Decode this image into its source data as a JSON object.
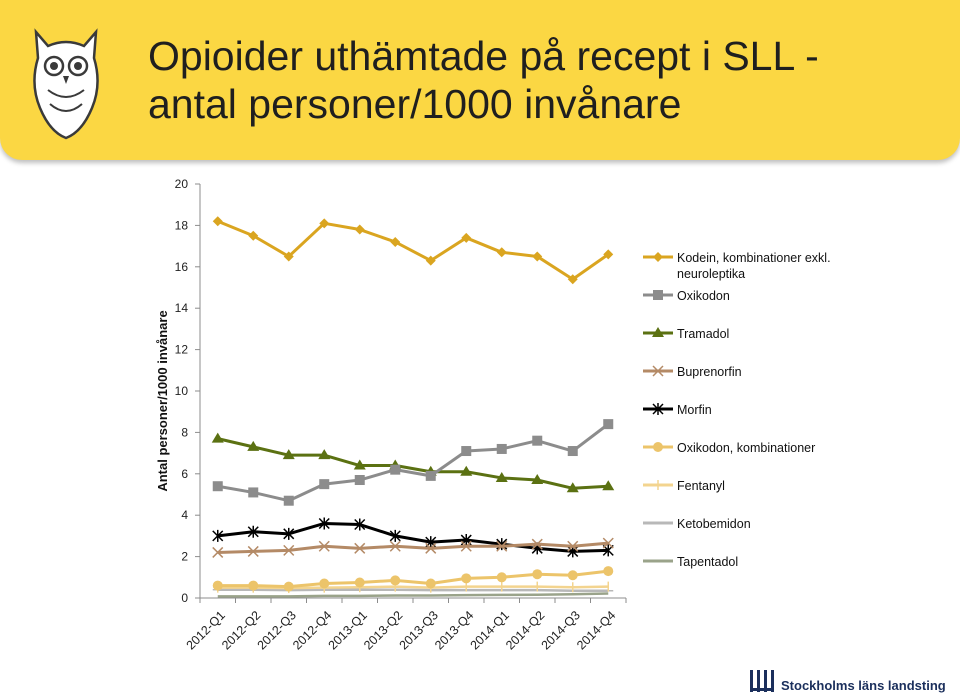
{
  "header": {
    "title_line1": "Opioider uthämtade på recept i SLL -",
    "title_line2": "antal personer/1000 invånare"
  },
  "footer": {
    "logo_text": "Stockholms läns landsting"
  },
  "colors": {
    "banner": "#fbd743",
    "Kodein": "#daa520",
    "Oxikodon": "#8c8c8c",
    "Tramadol": "#5b7112",
    "Buprenorfin": "#b48a66",
    "Morfin": "#000000",
    "OxikodonKomb": "#ecc46a",
    "Fentanyl": "#f3d48f",
    "Ketobemidon": "#b8b8b8",
    "Tapentadol": "#9aa38a"
  },
  "chart_data": {
    "type": "line",
    "title": "Opioider uthämtade på recept i SLL - antal personer/1000 invånare",
    "xlabel": "",
    "ylabel": "Antal personer/1000 invånare",
    "ylim": [
      0,
      20
    ],
    "yticks": [
      0,
      2,
      4,
      6,
      8,
      10,
      12,
      14,
      16,
      18,
      20
    ],
    "grid": false,
    "legend": "right",
    "categories": [
      "2012-Q1",
      "2012-Q2",
      "2012-Q3",
      "2012-Q4",
      "2013-Q1",
      "2013-Q2",
      "2013-Q3",
      "2013-Q4",
      "2014-Q1",
      "2014-Q2",
      "2014-Q3",
      "2014-Q4"
    ],
    "series": [
      {
        "name": "Kodein, kombinationer exkl. neuroleptika",
        "legend_lines": [
          "Kodein, kombinationer exkl.",
          "neuroleptika"
        ],
        "marker": "diamond",
        "color_key": "Kodein",
        "values": [
          18.2,
          17.5,
          16.5,
          18.1,
          17.8,
          17.2,
          16.3,
          17.4,
          16.7,
          16.5,
          15.4,
          16.6
        ]
      },
      {
        "name": "Oxikodon",
        "legend_lines": [
          "Oxikodon"
        ],
        "marker": "square",
        "color_key": "Oxikodon",
        "values": [
          5.4,
          5.1,
          4.7,
          5.5,
          5.7,
          6.2,
          5.9,
          7.1,
          7.2,
          7.6,
          7.1,
          8.4
        ]
      },
      {
        "name": "Tramadol",
        "legend_lines": [
          "Tramadol"
        ],
        "marker": "triangle",
        "color_key": "Tramadol",
        "values": [
          7.7,
          7.3,
          6.9,
          6.9,
          6.4,
          6.4,
          6.1,
          6.1,
          5.8,
          5.7,
          5.3,
          5.4
        ]
      },
      {
        "name": "Buprenorfin",
        "legend_lines": [
          "Buprenorfin"
        ],
        "marker": "x",
        "color_key": "Buprenorfin",
        "values": [
          2.2,
          2.25,
          2.3,
          2.5,
          2.4,
          2.5,
          2.4,
          2.5,
          2.5,
          2.6,
          2.5,
          2.65
        ]
      },
      {
        "name": "Morfin",
        "legend_lines": [
          "Morfin"
        ],
        "marker": "star",
        "color_key": "Morfin",
        "values": [
          3.0,
          3.2,
          3.1,
          3.6,
          3.55,
          3.0,
          2.7,
          2.8,
          2.6,
          2.4,
          2.25,
          2.3
        ]
      },
      {
        "name": "Oxikodon, kombinationer",
        "legend_lines": [
          "Oxikodon, kombinationer"
        ],
        "marker": "circle",
        "color_key": "OxikodonKomb",
        "values": [
          0.6,
          0.6,
          0.55,
          0.7,
          0.75,
          0.85,
          0.7,
          0.95,
          1.0,
          1.15,
          1.1,
          1.3
        ]
      },
      {
        "name": "Fentanyl",
        "legend_lines": [
          "Fentanyl"
        ],
        "marker": "plus",
        "color_key": "Fentanyl",
        "values": [
          0.5,
          0.5,
          0.48,
          0.5,
          0.52,
          0.55,
          0.5,
          0.55,
          0.55,
          0.55,
          0.52,
          0.55
        ]
      },
      {
        "name": "Ketobemidon",
        "legend_lines": [
          "Ketobemidon"
        ],
        "marker": "dash",
        "color_key": "Ketobemidon",
        "values": [
          0.4,
          0.4,
          0.38,
          0.4,
          0.4,
          0.4,
          0.38,
          0.38,
          0.38,
          0.38,
          0.35,
          0.35
        ]
      },
      {
        "name": "Tapentadol",
        "legend_lines": [
          "Tapentadol"
        ],
        "marker": "none",
        "color_key": "Tapentadol",
        "values": [
          0.08,
          0.08,
          0.08,
          0.1,
          0.1,
          0.12,
          0.12,
          0.14,
          0.15,
          0.16,
          0.18,
          0.22
        ]
      }
    ]
  }
}
